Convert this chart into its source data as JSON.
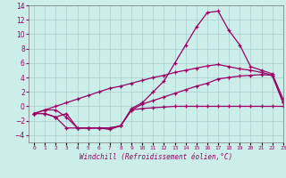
{
  "xlabel": "Windchill (Refroidissement éolien,°C)",
  "bg_color": "#cceee8",
  "grid_color": "#aacccc",
  "line_color": "#990066",
  "x_ticks": [
    0,
    1,
    2,
    3,
    4,
    5,
    6,
    7,
    8,
    9,
    10,
    11,
    12,
    13,
    14,
    15,
    16,
    17,
    18,
    19,
    20,
    21,
    22,
    23
  ],
  "ylim": [
    -5,
    14
  ],
  "xlim": [
    -0.5,
    23
  ],
  "line1": [
    -1,
    -1,
    -1.5,
    -1,
    -3,
    -3,
    -3,
    -3,
    -2.7,
    -0.5,
    -0.3,
    -0.2,
    -0.1,
    0,
    0,
    0,
    0,
    0,
    0,
    0,
    0,
    0,
    0,
    0
  ],
  "line2": [
    -1,
    -1,
    -1.5,
    -3.0,
    -3.0,
    -3.0,
    -3.0,
    -3.0,
    -2.7,
    -0.5,
    0.3,
    0.8,
    1.3,
    1.8,
    2.3,
    2.8,
    3.2,
    3.8,
    4.0,
    4.2,
    4.3,
    4.4,
    4.3,
    0.5
  ],
  "line3": [
    -1,
    -0.5,
    -0.5,
    -1.5,
    -3.0,
    -3.0,
    -3.0,
    -3.2,
    -2.7,
    -0.3,
    0.5,
    2.0,
    3.5,
    6.0,
    8.5,
    11.0,
    13.0,
    13.2,
    10.5,
    8.5,
    5.5,
    5.0,
    4.5,
    1.0
  ],
  "line4": [
    -1,
    -0.5,
    0.0,
    0.5,
    1.0,
    1.5,
    2.0,
    2.5,
    2.8,
    3.2,
    3.6,
    4.0,
    4.3,
    4.7,
    5.0,
    5.3,
    5.6,
    5.8,
    5.5,
    5.2,
    5.0,
    4.7,
    4.3,
    0.5
  ]
}
